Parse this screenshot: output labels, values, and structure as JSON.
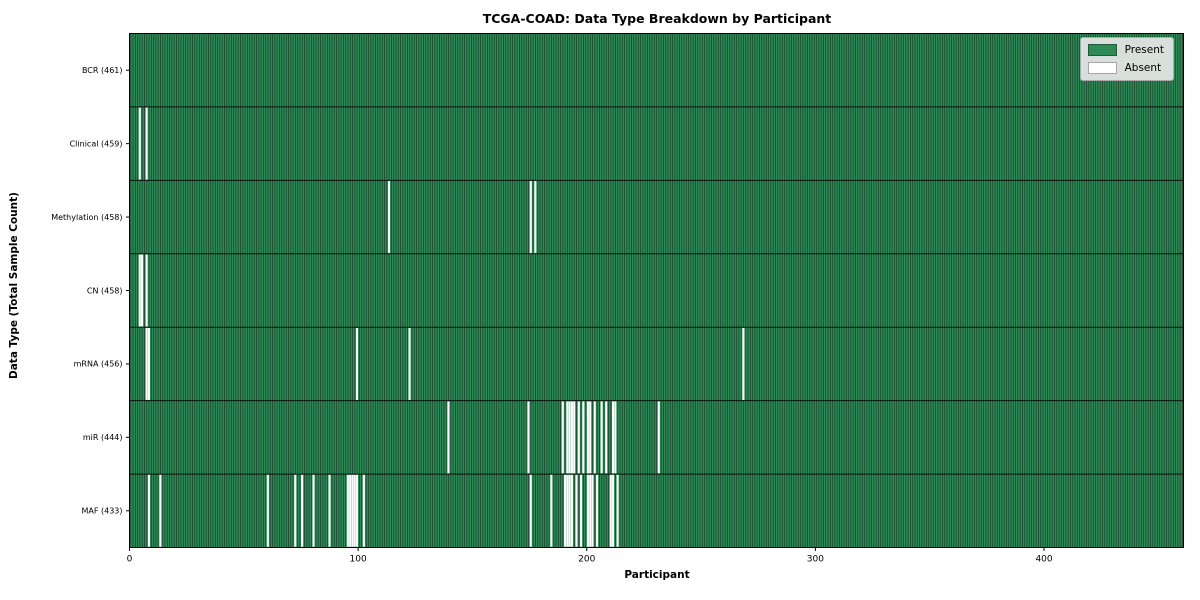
{
  "chart_data": {
    "type": "heatmap",
    "title": "TCGA-COAD: Data Type Breakdown by Participant",
    "xlabel": "Participant",
    "ylabel": "Data Type (Total Sample Count)",
    "xlim": [
      0,
      461
    ],
    "x_ticks": [
      0,
      100,
      200,
      300,
      400
    ],
    "n_participants": 461,
    "grid": false,
    "legend_position": "upper right",
    "legend": [
      {
        "label": "Present",
        "color": "#2E8B57"
      },
      {
        "label": "Absent",
        "color": "#FFFFFF"
      }
    ],
    "colors": {
      "present": "#2E8B57",
      "absent": "#FFFFFF",
      "bar_edge": "rgba(0,0,0,0.5)",
      "row_divider": "rgba(0,0,0,0.85)",
      "axis": "#000000"
    },
    "rows": [
      {
        "label": "BCR (461)",
        "name": "BCR",
        "total": 461,
        "absent": []
      },
      {
        "label": "Clinical (459)",
        "name": "Clinical",
        "total": 459,
        "absent": [
          4,
          7
        ]
      },
      {
        "label": "Methylation (458)",
        "name": "Methylation",
        "total": 458,
        "absent": [
          113,
          175,
          177
        ]
      },
      {
        "label": "CN (458)",
        "name": "CN",
        "total": 458,
        "absent": [
          4,
          5,
          7
        ]
      },
      {
        "label": "mRNA (456)",
        "name": "mRNA",
        "total": 456,
        "absent": [
          7,
          8,
          99,
          122,
          268
        ]
      },
      {
        "label": "miR (444)",
        "name": "miR",
        "total": 444,
        "absent": [
          139,
          174,
          189,
          191,
          192,
          193,
          194,
          196,
          198,
          200,
          201,
          203,
          206,
          208,
          211,
          212,
          231
        ]
      },
      {
        "label": "MAF (433)",
        "name": "MAF",
        "total": 433,
        "absent": [
          8,
          13,
          60,
          72,
          75,
          80,
          87,
          95,
          96,
          97,
          98,
          99,
          102,
          175,
          184,
          190,
          191,
          192,
          193,
          195,
          197,
          200,
          201,
          202,
          204,
          210,
          211,
          213
        ]
      }
    ]
  }
}
